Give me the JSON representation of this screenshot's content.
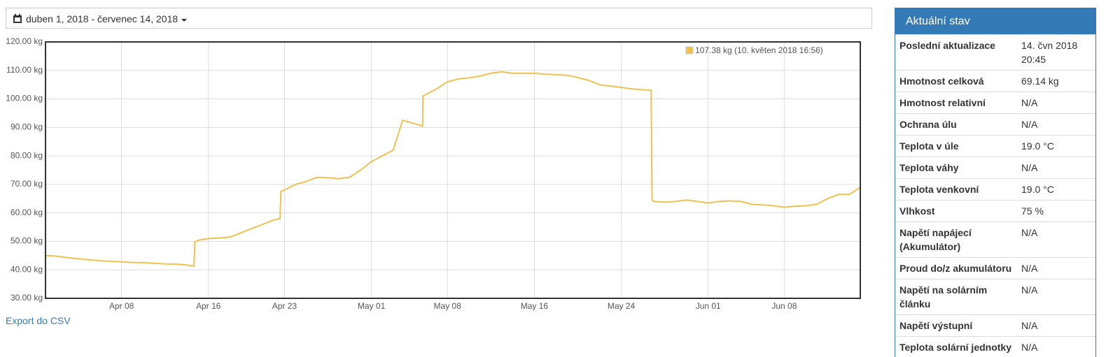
{
  "header": {
    "date_range": "duben 1, 2018 - červenec 14, 2018"
  },
  "chart_data": {
    "type": "line",
    "x": [
      "2018-04-01T00:00",
      "2018-04-02T00:00",
      "2018-04-03T00:00",
      "2018-04-04T00:00",
      "2018-04-05T00:00",
      "2018-04-06T00:00",
      "2018-04-07T00:00",
      "2018-04-08T00:00",
      "2018-04-09T00:00",
      "2018-04-10T00:00",
      "2018-04-11T00:00",
      "2018-04-12T00:00",
      "2018-04-13T00:00",
      "2018-04-14T00:00",
      "2018-04-14T16:00",
      "2018-04-14T18:00",
      "2018-04-15T00:00",
      "2018-04-16T00:00",
      "2018-04-17T00:00",
      "2018-04-18T00:00",
      "2018-04-19T00:00",
      "2018-04-20T00:00",
      "2018-04-21T00:00",
      "2018-04-22T00:00",
      "2018-04-22T14:00",
      "2018-04-22T16:00",
      "2018-04-23T00:00",
      "2018-04-24T00:00",
      "2018-04-25T00:00",
      "2018-04-26T00:00",
      "2018-04-27T00:00",
      "2018-04-28T00:00",
      "2018-04-29T00:00",
      "2018-04-30T00:00",
      "2018-05-01T00:00",
      "2018-05-02T00:00",
      "2018-05-03T00:00",
      "2018-05-03T21:00",
      "2018-05-05T17:00",
      "2018-05-05T18:00",
      "2018-05-06T00:00",
      "2018-05-07T00:00",
      "2018-05-08T00:00",
      "2018-05-09T00:00",
      "2018-05-10T00:00",
      "2018-05-11T00:00",
      "2018-05-12T00:00",
      "2018-05-13T00:00",
      "2018-05-14T00:00",
      "2018-05-15T00:00",
      "2018-05-16T00:00",
      "2018-05-17T00:00",
      "2018-05-18T00:00",
      "2018-05-19T00:00",
      "2018-05-20T00:00",
      "2018-05-21T00:00",
      "2018-05-22T00:00",
      "2018-05-23T00:00",
      "2018-05-24T00:00",
      "2018-05-25T00:00",
      "2018-05-26T18:00",
      "2018-05-26T20:00",
      "2018-05-27T00:00",
      "2018-05-28T00:00",
      "2018-05-29T00:00",
      "2018-05-30T00:00",
      "2018-05-31T00:00",
      "2018-06-01T00:00",
      "2018-06-02T00:00",
      "2018-06-03T00:00",
      "2018-06-04T00:00",
      "2018-06-05T00:00",
      "2018-06-06T00:00",
      "2018-06-07T00:00",
      "2018-06-08T00:00",
      "2018-06-09T00:00",
      "2018-06-10T00:00",
      "2018-06-11T00:00",
      "2018-06-12T00:00",
      "2018-06-13T00:00",
      "2018-06-14T00:00",
      "2018-06-15T00:00"
    ],
    "series": [
      {
        "name": "107.38 kg (10. květen 2018 16:56)",
        "color": "#f0c050",
        "values": [
          45,
          44.8,
          44.3,
          43.9,
          43.5,
          43.2,
          43,
          42.8,
          42.6,
          42.5,
          42.3,
          42.1,
          42,
          41.7,
          41.3,
          49.8,
          50.3,
          51,
          51.2,
          51.5,
          53,
          54.5,
          56,
          57.5,
          58,
          67.5,
          68,
          70,
          71,
          72.5,
          72.3,
          72,
          72.5,
          75,
          78,
          80,
          82,
          92.5,
          90.5,
          101,
          101.5,
          103.5,
          106,
          107,
          107.4,
          108,
          109,
          109.5,
          109,
          109,
          109,
          108.7,
          108.5,
          108.3,
          107.5,
          106.5,
          105,
          104.5,
          104,
          103.5,
          103,
          64.5,
          64,
          63.8,
          64,
          64.5,
          64,
          63.5,
          64,
          64.2,
          64,
          63,
          62.8,
          62.5,
          62,
          62.3,
          62.5,
          63,
          65,
          66.5,
          66.5,
          69
        ]
      }
    ],
    "xlim": [
      "2018-04-01T00:00",
      "2018-06-15T00:00"
    ],
    "xticks": [
      {
        "value": "2018-04-08T00:00",
        "label": "Apr 08"
      },
      {
        "value": "2018-04-16T00:00",
        "label": "Apr 16"
      },
      {
        "value": "2018-04-23T00:00",
        "label": "Apr 23"
      },
      {
        "value": "2018-05-01T00:00",
        "label": "May 01"
      },
      {
        "value": "2018-05-08T00:00",
        "label": "May 08"
      },
      {
        "value": "2018-05-16T00:00",
        "label": "May 16"
      },
      {
        "value": "2018-05-24T00:00",
        "label": "May 24"
      },
      {
        "value": "2018-06-01T00:00",
        "label": "Jun 01"
      },
      {
        "value": "2018-06-08T00:00",
        "label": "Jun 08"
      }
    ],
    "ylim": [
      30,
      120
    ],
    "yticks": [
      {
        "value": 30,
        "label": "30.00 kg"
      },
      {
        "value": 40,
        "label": "40.00 kg"
      },
      {
        "value": 50,
        "label": "50.00 kg"
      },
      {
        "value": 60,
        "label": "60.00 kg"
      },
      {
        "value": 70,
        "label": "70.00 kg"
      },
      {
        "value": 80,
        "label": "80.00 kg"
      },
      {
        "value": 90,
        "label": "90.00 kg"
      },
      {
        "value": 100,
        "label": "100.00 kg"
      },
      {
        "value": 110,
        "label": "110.00 kg"
      },
      {
        "value": 120,
        "label": "120.00 kg"
      }
    ],
    "grid": true
  },
  "export_link": "Export do CSV",
  "panel": {
    "title": "Aktuální stav",
    "rows": [
      [
        "Poslední aktualizace",
        "14. čvn 2018 20:45"
      ],
      [
        "Hmotnost celková",
        "69.14 kg"
      ],
      [
        "Hmotnost relativní",
        "N/A"
      ],
      [
        "Ochrana úlu",
        "N/A"
      ],
      [
        "Teplota v úle",
        "19.0 °C"
      ],
      [
        "Teplota váhy",
        "N/A"
      ],
      [
        "Teplota venkovní",
        "19.0 °C"
      ],
      [
        "Vlhkost",
        "75 %"
      ],
      [
        "Napětí napájecí (Akumulátor)",
        "N/A"
      ],
      [
        "Proud do/z akumulátoru",
        "N/A"
      ],
      [
        "Napětí na solárním článku",
        "N/A"
      ],
      [
        "Napětí výstupní",
        "N/A"
      ],
      [
        "Teplota solární jednotky",
        "N/A"
      ]
    ]
  }
}
